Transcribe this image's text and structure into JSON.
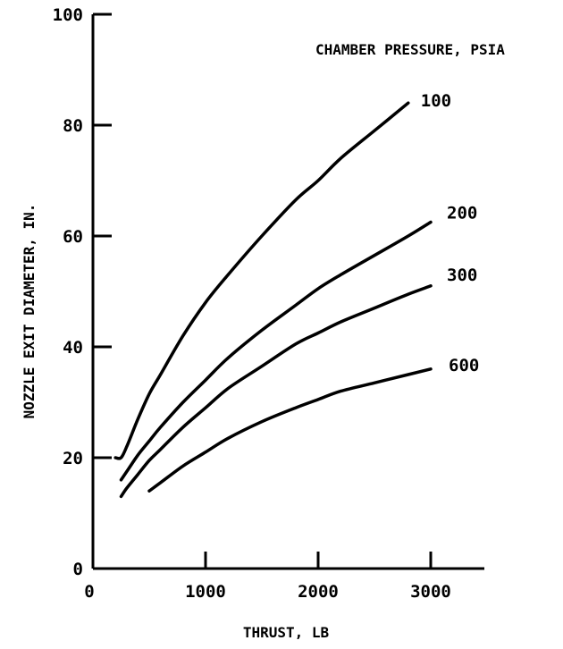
{
  "chart_data": {
    "type": "line",
    "title": "",
    "xlabel": "THRUST, LB",
    "ylabel": "NOZZLE EXIT DIAMETER, IN.",
    "xlim": [
      0,
      3500
    ],
    "ylim": [
      0,
      100
    ],
    "xticks": [
      0,
      1000,
      2000,
      3000
    ],
    "yticks": [
      0,
      20,
      40,
      60,
      80,
      100
    ],
    "grid": false,
    "legend_title": "CHAMBER PRESSURE, PSIA",
    "legend_placement": "top-right",
    "series": [
      {
        "name": "100",
        "x": [
          200,
          250,
          300,
          400,
          500,
          600,
          800,
          1000,
          1200,
          1500,
          1800,
          2000,
          2200,
          2500,
          2800
        ],
        "y": [
          20,
          20,
          22,
          27,
          31.5,
          35,
          42,
          48,
          53,
          60,
          66.5,
          70,
          74,
          79,
          84
        ]
      },
      {
        "name": "200",
        "x": [
          250,
          300,
          400,
          500,
          600,
          800,
          1000,
          1200,
          1500,
          1800,
          2000,
          2200,
          2500,
          2800,
          3000
        ],
        "y": [
          16,
          17.5,
          20.5,
          23,
          25.5,
          30,
          34,
          38,
          43,
          47.5,
          50.5,
          53,
          56.5,
          60,
          62.5
        ]
      },
      {
        "name": "300",
        "x": [
          250,
          300,
          400,
          500,
          600,
          800,
          1000,
          1200,
          1500,
          1800,
          2000,
          2200,
          2500,
          2800,
          3000
        ],
        "y": [
          13,
          14.5,
          17,
          19.5,
          21.5,
          25.5,
          29,
          32.5,
          36.5,
          40.5,
          42.5,
          44.5,
          47,
          49.5,
          51
        ]
      },
      {
        "name": "600",
        "x": [
          500,
          600,
          800,
          1000,
          1200,
          1500,
          1800,
          2000,
          2200,
          2500,
          2800,
          3000
        ],
        "y": [
          14,
          15.5,
          18.5,
          21,
          23.5,
          26.5,
          29,
          30.5,
          32,
          33.5,
          35,
          36
        ]
      }
    ]
  }
}
